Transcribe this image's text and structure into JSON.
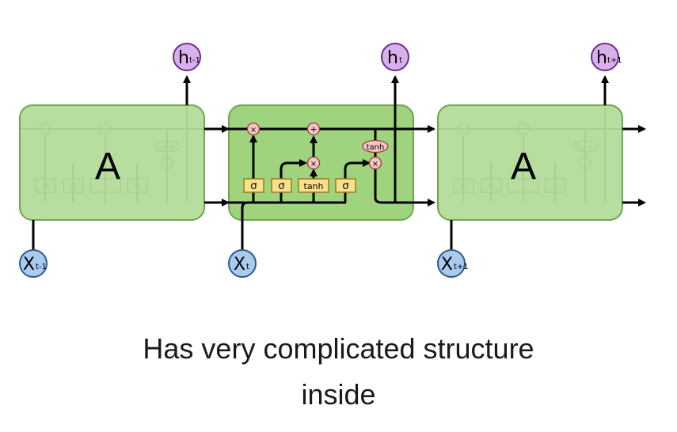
{
  "colors": {
    "cell_fill": "#9fd37e",
    "cell_stroke": "#6fa64f",
    "gate_fill": "#f9e08b",
    "gate_stroke": "#9a7a1e",
    "pointwise_fill": "#f7c7c7",
    "pointwise_stroke": "#9a3a3a",
    "input_fill": "#a9cbee",
    "input_stroke": "#2d5a8a",
    "output_fill": "#d9b0ec",
    "output_stroke": "#6a2d8a",
    "line": "#000000"
  },
  "cells": {
    "left_label": "A",
    "right_label": "A",
    "middle": {
      "gates": [
        "σ",
        "σ",
        "tanh",
        "σ"
      ],
      "pointwise_ops": [
        "×",
        "+",
        "×",
        "×"
      ],
      "tanh_op": "tanh"
    },
    "ghost": {
      "gates": [
        "σ",
        "σ",
        "tanh",
        "σ"
      ],
      "pointwise_ops": [
        "×",
        "+",
        "×"
      ],
      "tanh_op": "tanh"
    }
  },
  "inputs": [
    {
      "base": "X",
      "sub": "t-1"
    },
    {
      "base": "X",
      "sub": "t"
    },
    {
      "base": "X",
      "sub": "t+1"
    }
  ],
  "outputs": [
    {
      "base": "h",
      "sub": "t-1"
    },
    {
      "base": "h",
      "sub": "t"
    },
    {
      "base": "h",
      "sub": "t+1"
    }
  ],
  "caption": {
    "line1": "Has very complicated structure",
    "line2": "inside"
  }
}
